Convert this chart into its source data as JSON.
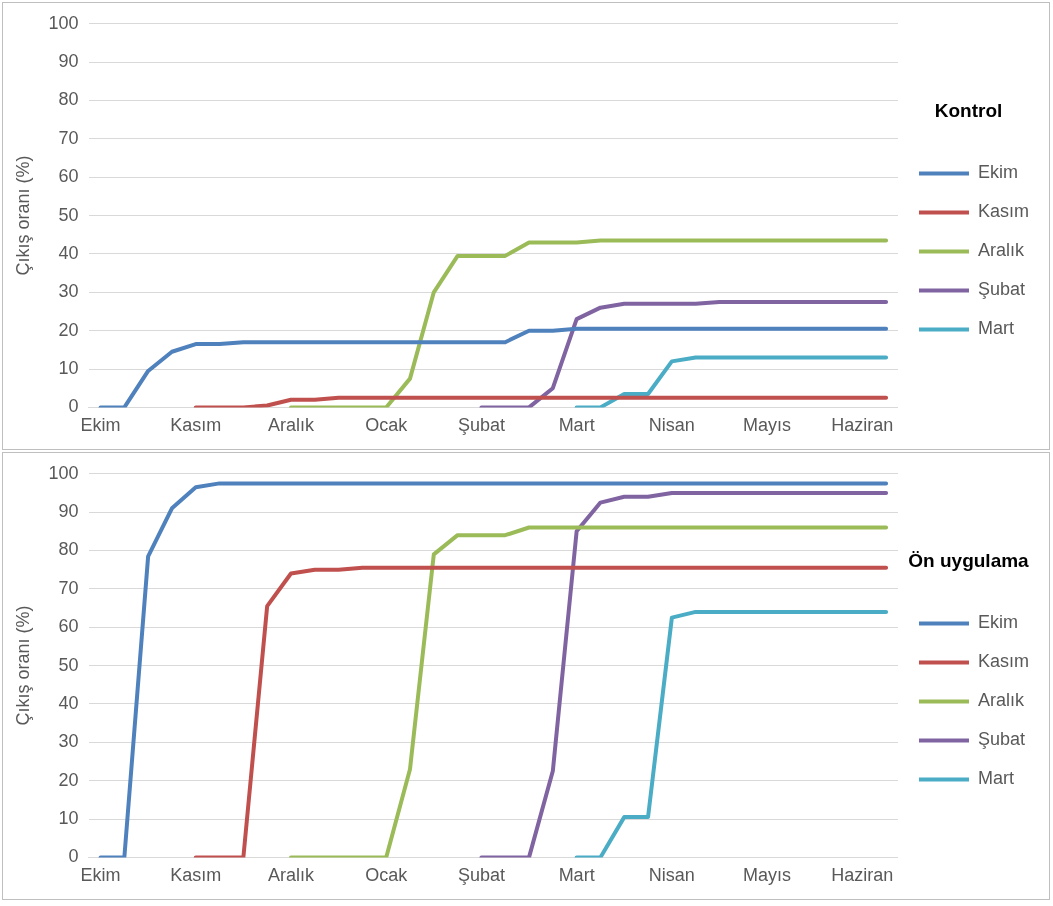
{
  "chart_data": [
    {
      "type": "line",
      "legend_title": "Kontrol",
      "ylabel": "Çıkış oranı (%)",
      "ylim": [
        0,
        100
      ],
      "yticks": [
        0,
        10,
        20,
        30,
        40,
        50,
        60,
        70,
        80,
        90,
        100
      ],
      "grid": "y",
      "legend": "right",
      "marker": "none",
      "categories": [
        "Ekim",
        null,
        null,
        null,
        "Kasım",
        null,
        null,
        null,
        "Aralık",
        null,
        null,
        null,
        "Ocak",
        null,
        null,
        null,
        "Şubat",
        null,
        null,
        null,
        "Mart",
        null,
        null,
        null,
        "Nisan",
        null,
        null,
        null,
        "Mayıs",
        null,
        null,
        null,
        "Haziran",
        null
      ],
      "series": [
        {
          "name": "Ekim",
          "color": "#4f81bd",
          "values": [
            0,
            0,
            9.5,
            14.5,
            16.5,
            16.5,
            17,
            17,
            17,
            17,
            17,
            17,
            17,
            17,
            17,
            17,
            17,
            17,
            20,
            20,
            20.5,
            20.5,
            20.5,
            20.5,
            20.5,
            20.5,
            20.5,
            20.5,
            20.5,
            20.5,
            20.5,
            20.5,
            20.5,
            20.5
          ]
        },
        {
          "name": "Kasım",
          "color": "#c0504d",
          "values": [
            null,
            null,
            null,
            null,
            0,
            0,
            0,
            0.5,
            2,
            2,
            2.5,
            2.5,
            2.5,
            2.5,
            2.5,
            2.5,
            2.5,
            2.5,
            2.5,
            2.5,
            2.5,
            2.5,
            2.5,
            2.5,
            2.5,
            2.5,
            2.5,
            2.5,
            2.5,
            2.5,
            2.5,
            2.5,
            2.5,
            2.5
          ]
        },
        {
          "name": "Aralık",
          "color": "#9bbb59",
          "values": [
            null,
            null,
            null,
            null,
            null,
            null,
            null,
            null,
            0,
            0,
            0,
            0,
            0,
            7.5,
            30,
            39.5,
            39.5,
            39.5,
            43,
            43,
            43,
            43.5,
            43.5,
            43.5,
            43.5,
            43.5,
            43.5,
            43.5,
            43.5,
            43.5,
            43.5,
            43.5,
            43.5,
            43.5
          ]
        },
        {
          "name": "Şubat",
          "color": "#8064a2",
          "values": [
            null,
            null,
            null,
            null,
            null,
            null,
            null,
            null,
            null,
            null,
            null,
            null,
            null,
            null,
            null,
            null,
            0,
            0,
            0,
            5,
            23,
            26,
            27,
            27,
            27,
            27,
            27.5,
            27.5,
            27.5,
            27.5,
            27.5,
            27.5,
            27.5,
            27.5
          ]
        },
        {
          "name": "Mart",
          "color": "#4bacc6",
          "values": [
            null,
            null,
            null,
            null,
            null,
            null,
            null,
            null,
            null,
            null,
            null,
            null,
            null,
            null,
            null,
            null,
            null,
            null,
            null,
            null,
            0,
            0,
            3.5,
            3.5,
            12,
            13,
            13,
            13,
            13,
            13,
            13,
            13,
            13,
            13
          ]
        }
      ]
    },
    {
      "type": "line",
      "legend_title": "Ön uygulama",
      "ylabel": "Çıkış oranı (%)",
      "ylim": [
        0,
        100
      ],
      "yticks": [
        0,
        10,
        20,
        30,
        40,
        50,
        60,
        70,
        80,
        90,
        100
      ],
      "grid": "y",
      "legend": "right",
      "marker": "none",
      "categories": [
        "Ekim",
        null,
        null,
        null,
        "Kasım",
        null,
        null,
        null,
        "Aralık",
        null,
        null,
        null,
        "Ocak",
        null,
        null,
        null,
        "Şubat",
        null,
        null,
        null,
        "Mart",
        null,
        null,
        null,
        "Nisan",
        null,
        null,
        null,
        "Mayıs",
        null,
        null,
        null,
        "Haziran",
        null
      ],
      "series": [
        {
          "name": "Ekim",
          "color": "#4f81bd",
          "values": [
            0,
            0,
            78.5,
            91,
            96.5,
            97.5,
            97.5,
            97.5,
            97.5,
            97.5,
            97.5,
            97.5,
            97.5,
            97.5,
            97.5,
            97.5,
            97.5,
            97.5,
            97.5,
            97.5,
            97.5,
            97.5,
            97.5,
            97.5,
            97.5,
            97.5,
            97.5,
            97.5,
            97.5,
            97.5,
            97.5,
            97.5,
            97.5,
            97.5
          ]
        },
        {
          "name": "Kasım",
          "color": "#c0504d",
          "values": [
            null,
            null,
            null,
            null,
            0,
            0,
            0,
            65.5,
            74,
            75,
            75,
            75.5,
            75.5,
            75.5,
            75.5,
            75.5,
            75.5,
            75.5,
            75.5,
            75.5,
            75.5,
            75.5,
            75.5,
            75.5,
            75.5,
            75.5,
            75.5,
            75.5,
            75.5,
            75.5,
            75.5,
            75.5,
            75.5,
            75.5
          ]
        },
        {
          "name": "Aralık",
          "color": "#9bbb59",
          "values": [
            null,
            null,
            null,
            null,
            null,
            null,
            null,
            null,
            0,
            0,
            0,
            0,
            0,
            23,
            79,
            84,
            84,
            84,
            86,
            86,
            86,
            86,
            86,
            86,
            86,
            86,
            86,
            86,
            86,
            86,
            86,
            86,
            86,
            86
          ]
        },
        {
          "name": "Şubat",
          "color": "#8064a2",
          "values": [
            null,
            null,
            null,
            null,
            null,
            null,
            null,
            null,
            null,
            null,
            null,
            null,
            null,
            null,
            null,
            null,
            0,
            0,
            0,
            22.5,
            85,
            92.5,
            94,
            94,
            95,
            95,
            95,
            95,
            95,
            95,
            95,
            95,
            95,
            95
          ]
        },
        {
          "name": "Mart",
          "color": "#4bacc6",
          "values": [
            null,
            null,
            null,
            null,
            null,
            null,
            null,
            null,
            null,
            null,
            null,
            null,
            null,
            null,
            null,
            null,
            null,
            null,
            null,
            null,
            0,
            0,
            10.5,
            10.5,
            62.5,
            64,
            64,
            64,
            64,
            64,
            64,
            64,
            64,
            64
          ]
        }
      ]
    }
  ]
}
